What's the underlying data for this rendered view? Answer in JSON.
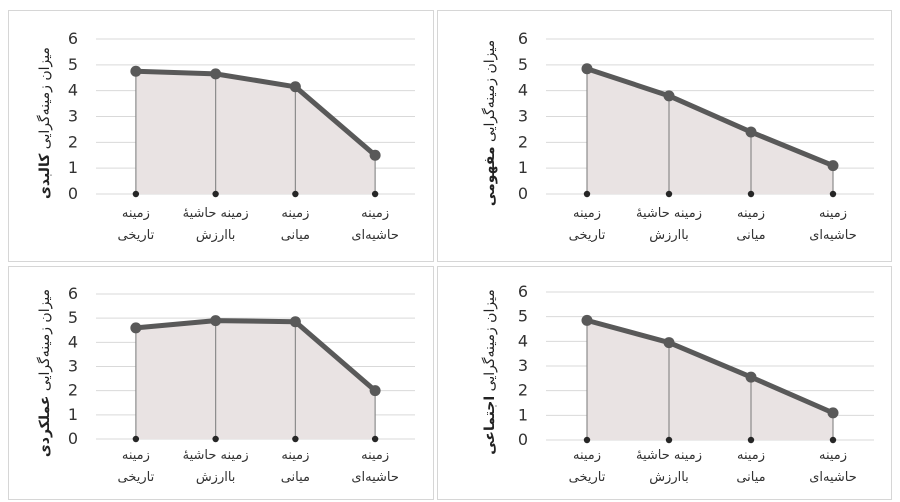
{
  "chart_data": [
    {
      "type": "area",
      "ylabel_prefix": "میزان زمینه‌گرایی",
      "ylabel_emphasis": "کالبدی",
      "categories": [
        [
          "زمینه",
          "تاریخی"
        ],
        [
          "زمینه حاشیهٔ",
          "باارزش"
        ],
        [
          "زمینه",
          "میانی"
        ],
        [
          "زمینه",
          "حاشیه‌ای"
        ]
      ],
      "values": [
        4.75,
        4.65,
        4.15,
        1.5
      ],
      "ylim": [
        0,
        6
      ],
      "yticks": [
        "0",
        "1",
        "2",
        "3",
        "4",
        "5",
        "6"
      ],
      "grid": true
    },
    {
      "type": "area",
      "ylabel_prefix": "میزان زمینه‌گرایی",
      "ylabel_emphasis": "مفهومی",
      "categories": [
        [
          "زمینه",
          "تاریخی"
        ],
        [
          "زمینه حاشیهٔ",
          "باارزش"
        ],
        [
          "زمینه",
          "میانی"
        ],
        [
          "زمینه",
          "حاشیه‌ای"
        ]
      ],
      "values": [
        4.85,
        3.8,
        2.4,
        1.1
      ],
      "ylim": [
        0,
        6
      ],
      "yticks": [
        "0",
        "1",
        "2",
        "3",
        "4",
        "5",
        "6"
      ],
      "grid": true
    },
    {
      "type": "area",
      "ylabel_prefix": "میزان زمینه‌گرایی",
      "ylabel_emphasis": "عملکردی",
      "categories": [
        [
          "زمینه",
          "تاریخی"
        ],
        [
          "زمینه حاشیهٔ",
          "باارزش"
        ],
        [
          "زمینه",
          "میانی"
        ],
        [
          "زمینه",
          "حاشیه‌ای"
        ]
      ],
      "values": [
        4.6,
        4.9,
        4.85,
        2.0
      ],
      "ylim": [
        0,
        6
      ],
      "yticks": [
        "0",
        "1",
        "2",
        "3",
        "4",
        "5",
        "6"
      ],
      "grid": true
    },
    {
      "type": "area",
      "ylabel_prefix": "میزان زمینه‌گرایی",
      "ylabel_emphasis": "اجتماعی",
      "categories": [
        [
          "زمینه",
          "تاریخی"
        ],
        [
          "زمینه حاشیهٔ",
          "باارزش"
        ],
        [
          "زمینه",
          "میانی"
        ],
        [
          "زمینه",
          "حاشیه‌ای"
        ]
      ],
      "values": [
        4.85,
        3.95,
        2.55,
        1.1
      ],
      "ylim": [
        0,
        6
      ],
      "yticks": [
        "0",
        "1",
        "2",
        "3",
        "4",
        "5",
        "6"
      ],
      "grid": true
    }
  ],
  "colors": {
    "line": "#595959",
    "fill": "#e9e3e3",
    "grid": "#d9d9d9",
    "base_dot": "#262626",
    "drop_line": "#8c8c8c"
  }
}
